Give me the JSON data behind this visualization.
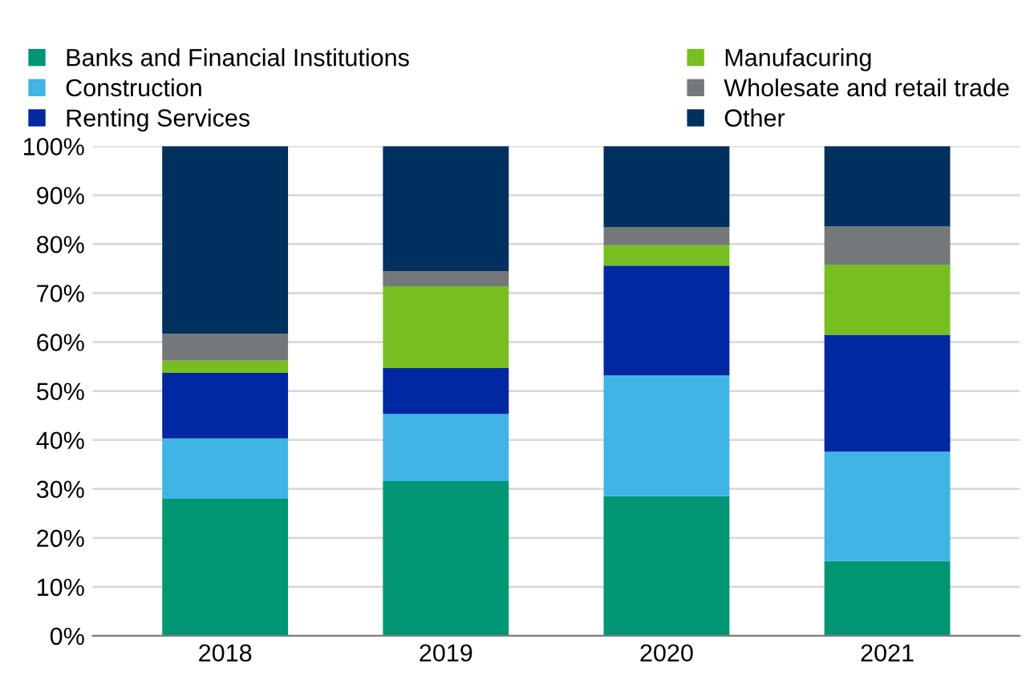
{
  "chart_data": {
    "type": "bar",
    "stacked": true,
    "categories": [
      "2018",
      "2019",
      "2020",
      "2021"
    ],
    "series": [
      {
        "name": "Banks and Financial Institutions",
        "color": "#009673",
        "values": [
          28,
          31.6,
          28.5,
          15.3
        ]
      },
      {
        "name": "Construction",
        "color": "#41b4e6",
        "values": [
          12.3,
          13.7,
          24.7,
          22.3
        ]
      },
      {
        "name": "Renting Services",
        "color": "#0028a0",
        "values": [
          13.4,
          9.4,
          22.4,
          23.9
        ]
      },
      {
        "name": "Manufacuring",
        "color": "#78be20",
        "values": [
          2.5,
          16.7,
          4.2,
          14.3
        ]
      },
      {
        "name": "Wholesate and retail trade",
        "color": "#75787b",
        "values": [
          5.5,
          3.1,
          3.7,
          7.8
        ]
      },
      {
        "name": "Other",
        "color": "#00305e",
        "values": [
          38.3,
          25.5,
          16.5,
          16.4
        ]
      }
    ],
    "ylim": [
      0,
      100
    ],
    "yticks": [
      {
        "value": 0,
        "label": "0%"
      },
      {
        "value": 10,
        "label": "10%"
      },
      {
        "value": 20,
        "label": "20%"
      },
      {
        "value": 30,
        "label": "30%"
      },
      {
        "value": 40,
        "label": "40%"
      },
      {
        "value": 50,
        "label": "50%"
      },
      {
        "value": 60,
        "label": "60%"
      },
      {
        "value": 70,
        "label": "70%"
      },
      {
        "value": 80,
        "label": "80%"
      },
      {
        "value": 90,
        "label": "90%"
      },
      {
        "value": 100,
        "label": "100%"
      }
    ],
    "grid": "y",
    "legend": "top"
  }
}
